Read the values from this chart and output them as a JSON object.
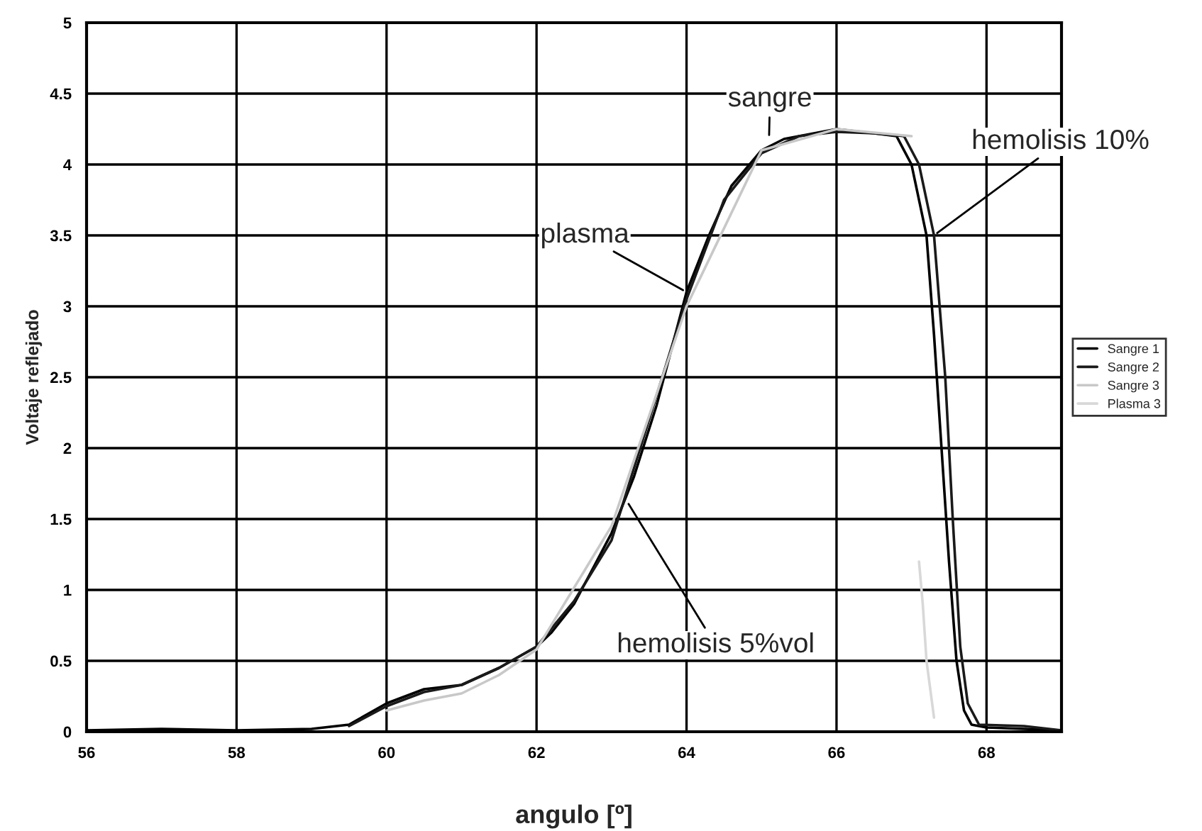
{
  "chart_data": {
    "type": "line",
    "xlabel": "angulo [º]",
    "ylabel": "Voltaje reflejado",
    "xlim": [
      56,
      69
    ],
    "xticks": [
      56,
      58,
      60,
      62,
      64,
      66,
      68
    ],
    "ylim": [
      0,
      5
    ],
    "yticks": [
      0,
      0.5,
      1,
      1.5,
      2,
      2.5,
      3,
      3.5,
      4,
      4.5,
      5
    ],
    "grid": true,
    "legend": "right",
    "marker": "none",
    "series": [
      {
        "name": "Sangre 1",
        "color": "#000000",
        "x": [
          56,
          57,
          58,
          59,
          59.5,
          60,
          60.5,
          61,
          61.5,
          62,
          62.2,
          62.5,
          62.8,
          63,
          63.3,
          63.6,
          63.8,
          64,
          64.3,
          64.6,
          65,
          65.3,
          65.7,
          66,
          66.5,
          66.8,
          67,
          67.2,
          67.3,
          67.4,
          67.5,
          67.6,
          67.7,
          67.8,
          68,
          69
        ],
        "values": [
          0.01,
          0.02,
          0.01,
          0.02,
          0.05,
          0.2,
          0.3,
          0.33,
          0.45,
          0.6,
          0.7,
          0.9,
          1.2,
          1.4,
          1.8,
          2.3,
          2.7,
          3.1,
          3.5,
          3.85,
          4.1,
          4.18,
          4.22,
          4.25,
          4.22,
          4.2,
          4.0,
          3.5,
          2.8,
          2.0,
          1.2,
          0.5,
          0.15,
          0.05,
          0.03,
          0.01
        ]
      },
      {
        "name": "Sangre 2",
        "color": "#1a1a1a",
        "x": [
          59.5,
          60,
          60.5,
          61,
          61.5,
          62,
          62.5,
          63,
          63.5,
          64,
          64.5,
          65,
          65.5,
          66,
          66.5,
          66.9,
          67.1,
          67.3,
          67.45,
          67.55,
          67.65,
          67.75,
          67.9,
          68.5,
          69
        ],
        "values": [
          0.04,
          0.18,
          0.28,
          0.33,
          0.45,
          0.6,
          0.92,
          1.35,
          2.2,
          3.05,
          3.75,
          4.08,
          4.2,
          4.23,
          4.22,
          4.2,
          4.0,
          3.5,
          2.5,
          1.5,
          0.6,
          0.2,
          0.05,
          0.04,
          0.01
        ]
      },
      {
        "name": "Sangre 3",
        "color": "#c8c8c8",
        "x": [
          60,
          60.5,
          61,
          61.5,
          62,
          63,
          64,
          65,
          66,
          67
        ],
        "values": [
          0.15,
          0.22,
          0.27,
          0.4,
          0.58,
          1.45,
          3.0,
          4.1,
          4.25,
          4.2
        ]
      },
      {
        "name": "Plasma 3",
        "color": "#d8d8d8",
        "x": [
          67.1,
          67.15,
          67.2,
          67.3
        ],
        "values": [
          1.2,
          0.9,
          0.5,
          0.1
        ]
      }
    ],
    "annotations": [
      {
        "text": "sangre",
        "x": 65.1,
        "y": 4.18
      },
      {
        "text": "hemolisis 10%",
        "x": 67.3,
        "y": 3.5
      },
      {
        "text": "plasma",
        "x": 64,
        "y": 3.1
      },
      {
        "text": "hemolisis 5%vol",
        "x": 63.2,
        "y": 1.63
      }
    ]
  }
}
